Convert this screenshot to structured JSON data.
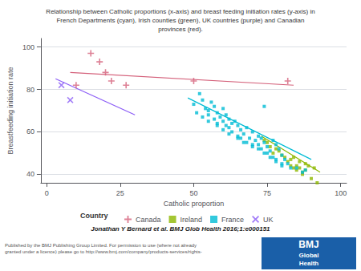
{
  "chart_data": {
    "type": "scatter",
    "title": "Relationship between Catholic proportions (x-axis) and breast feeding initiation rates (y-axis) in\nFrench Departments (cyan), Irish counties (green), UK countries (purple) and Canadian\nprovinces (red).",
    "xlabel": "Catholic proportion",
    "ylabel": "Breastfeeding initiation rate",
    "xlim": [
      -2,
      102
    ],
    "ylim": [
      36,
      104
    ],
    "xticks": [
      0,
      25,
      50,
      75,
      100
    ],
    "yticks": [
      40,
      60,
      80,
      100
    ],
    "grid": "y",
    "legend_title": "Country",
    "series": [
      {
        "name": "Canada",
        "color": "#d4607a",
        "marker": "plus",
        "x": [
          10,
          15,
          18,
          20,
          22,
          27,
          50,
          82
        ],
        "values": [
          82,
          97,
          93,
          88,
          84,
          82,
          84,
          84
        ],
        "trend": {
          "x": [
            8,
            84
          ],
          "values": [
            88,
            82
          ]
        }
      },
      {
        "name": "Ireland",
        "color": "#8db800",
        "marker": "square",
        "x": [
          74,
          75,
          76,
          77,
          78,
          79,
          80,
          81,
          82,
          83,
          83,
          84,
          84,
          85,
          85,
          86,
          86,
          87,
          87,
          88,
          88,
          89,
          90,
          91,
          92
        ],
        "values": [
          56,
          55,
          53,
          50,
          52,
          51,
          49,
          48,
          46,
          47,
          44,
          48,
          43,
          44,
          42,
          46,
          43,
          41,
          40,
          45,
          42,
          44,
          38,
          43,
          36
        ],
        "trend": {
          "x": [
            73,
            93
          ],
          "values": [
            58,
            41
          ]
        }
      },
      {
        "name": "France",
        "color": "#00bcd4",
        "marker": "square",
        "x": [
          50,
          52,
          53,
          54,
          55,
          55,
          56,
          57,
          57,
          58,
          58,
          59,
          60,
          60,
          61,
          61,
          62,
          62,
          63,
          63,
          64,
          65,
          65,
          66,
          66,
          67,
          68,
          68,
          69,
          70,
          70,
          71,
          72,
          72,
          73,
          73,
          74,
          74,
          75,
          75,
          76,
          77,
          77,
          78,
          78,
          79,
          80,
          80,
          81,
          82,
          83,
          85,
          87,
          88,
          51,
          53,
          55,
          58,
          60,
          62,
          65,
          67,
          70,
          72,
          74,
          76,
          78,
          80
        ],
        "values": [
          73,
          78,
          75,
          71,
          70,
          68,
          74,
          72,
          66,
          69,
          64,
          67,
          65,
          71,
          63,
          68,
          66,
          62,
          64,
          60,
          65,
          63,
          58,
          61,
          57,
          59,
          62,
          55,
          57,
          60,
          53,
          56,
          54,
          58,
          52,
          57,
          55,
          72,
          50,
          53,
          51,
          56,
          48,
          54,
          46,
          52,
          49,
          44,
          47,
          45,
          43,
          43,
          41,
          42,
          69,
          67,
          65,
          63,
          61,
          59,
          57,
          55,
          54,
          52,
          50,
          48,
          47,
          45
        ],
        "trend": {
          "x": [
            48,
            90
          ],
          "values": [
            76,
            47
          ]
        }
      },
      {
        "name": "UK",
        "color": "#8b5cf6",
        "marker": "cross",
        "x": [
          5,
          8
        ],
        "values": [
          82,
          75
        ],
        "trend": {
          "x": [
            3,
            30
          ],
          "values": [
            85,
            68
          ]
        }
      }
    ],
    "annotations": [
      "Jonathan Y Bernard et al. BMJ Glob Health 2016;1:e000151",
      "Published by the BMJ Publishing Group Limited. For permission to use (where not already\ngranted under a licence) please go to http://www.bmj.com/company/products-services/rights-",
      "BMJ",
      "Global",
      "Health"
    ]
  }
}
